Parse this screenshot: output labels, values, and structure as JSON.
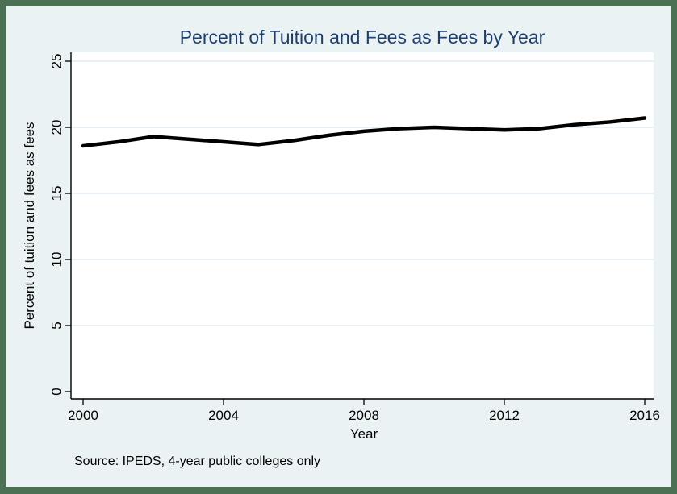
{
  "window": {
    "background_color": "#EAF2F3",
    "border_color": "#4B7053",
    "plot_background_color": "#FFFFFF"
  },
  "chart_data": {
    "type": "line",
    "title": "Percent of Tuition and Fees as Fees by Year",
    "title_color": "#1E3F6E",
    "xlabel": "Year",
    "ylabel": "Percent of tuition and fees as fees",
    "note": "Source: IPEDS, 4-year public colleges only",
    "x": [
      2000,
      2001,
      2002,
      2003,
      2004,
      2005,
      2006,
      2007,
      2008,
      2009,
      2010,
      2011,
      2012,
      2013,
      2014,
      2015,
      2016
    ],
    "series": [
      {
        "name": "Percent of tuition and fees as fees",
        "color": "#000000",
        "values": [
          18.6,
          18.9,
          19.3,
          19.1,
          18.9,
          18.7,
          19.0,
          19.4,
          19.7,
          19.9,
          20.0,
          19.9,
          19.8,
          19.9,
          20.2,
          20.4,
          20.7
        ]
      }
    ],
    "xlim": [
      2000,
      2016
    ],
    "ylim": [
      0,
      25
    ],
    "xticks": [
      2000,
      2004,
      2008,
      2012,
      2016
    ],
    "yticks": [
      0,
      5,
      10,
      15,
      20,
      25
    ],
    "grid": "horizontal, at labeled y ticks except 0",
    "gridline_color": "#E2ECF2",
    "legend_position": "none"
  }
}
